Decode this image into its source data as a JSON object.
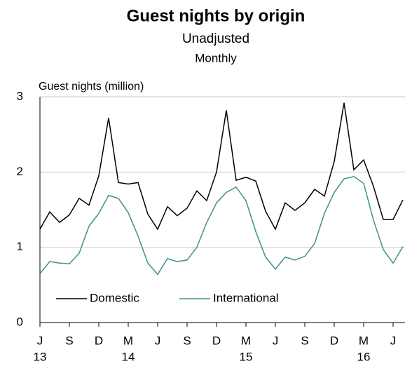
{
  "chart_data": {
    "type": "line",
    "title": "Guest nights by origin",
    "subtitle": "Unadjusted",
    "subtitle2": "Monthly",
    "y_label": "Guest nights (million)",
    "categories": [
      "J",
      null,
      null,
      "S",
      null,
      null,
      "D",
      null,
      null,
      "M",
      null,
      null,
      "J",
      null,
      null,
      "S",
      null,
      null,
      "D",
      null,
      null,
      "M",
      null,
      null,
      "J",
      null,
      null,
      "S",
      null,
      null,
      "D",
      null,
      null,
      "M",
      null,
      null,
      "J",
      null
    ],
    "year_labels": [
      "13",
      null,
      null,
      null,
      null,
      null,
      null,
      null,
      null,
      "14",
      null,
      null,
      null,
      null,
      null,
      null,
      null,
      null,
      null,
      null,
      null,
      "15",
      null,
      null,
      null,
      null,
      null,
      null,
      null,
      null,
      null,
      null,
      null,
      "16",
      null,
      null,
      null,
      null
    ],
    "series": [
      {
        "name": "Domestic",
        "color": "#000000",
        "values": [
          1.24,
          1.47,
          1.33,
          1.43,
          1.65,
          1.56,
          1.95,
          2.72,
          1.86,
          1.84,
          1.86,
          1.44,
          1.24,
          1.54,
          1.42,
          1.52,
          1.75,
          1.62,
          2.0,
          2.82,
          1.89,
          1.93,
          1.88,
          1.48,
          1.24,
          1.59,
          1.49,
          1.59,
          1.77,
          1.68,
          2.14,
          2.92,
          2.03,
          2.16,
          1.81,
          1.37,
          1.37,
          1.63
        ]
      },
      {
        "name": "International",
        "color": "#3f8f8c",
        "values": [
          0.65,
          0.81,
          0.79,
          0.78,
          0.92,
          1.28,
          1.45,
          1.69,
          1.65,
          1.46,
          1.15,
          0.79,
          0.64,
          0.85,
          0.81,
          0.83,
          1.0,
          1.33,
          1.59,
          1.73,
          1.8,
          1.62,
          1.21,
          0.87,
          0.71,
          0.87,
          0.83,
          0.88,
          1.05,
          1.45,
          1.73,
          1.91,
          1.94,
          1.85,
          1.36,
          0.97,
          0.79,
          1.01
        ]
      }
    ],
    "ylim": [
      0,
      3
    ],
    "yticks": [
      0,
      1,
      2,
      3
    ],
    "grid": true,
    "legend": "bottom-left"
  }
}
